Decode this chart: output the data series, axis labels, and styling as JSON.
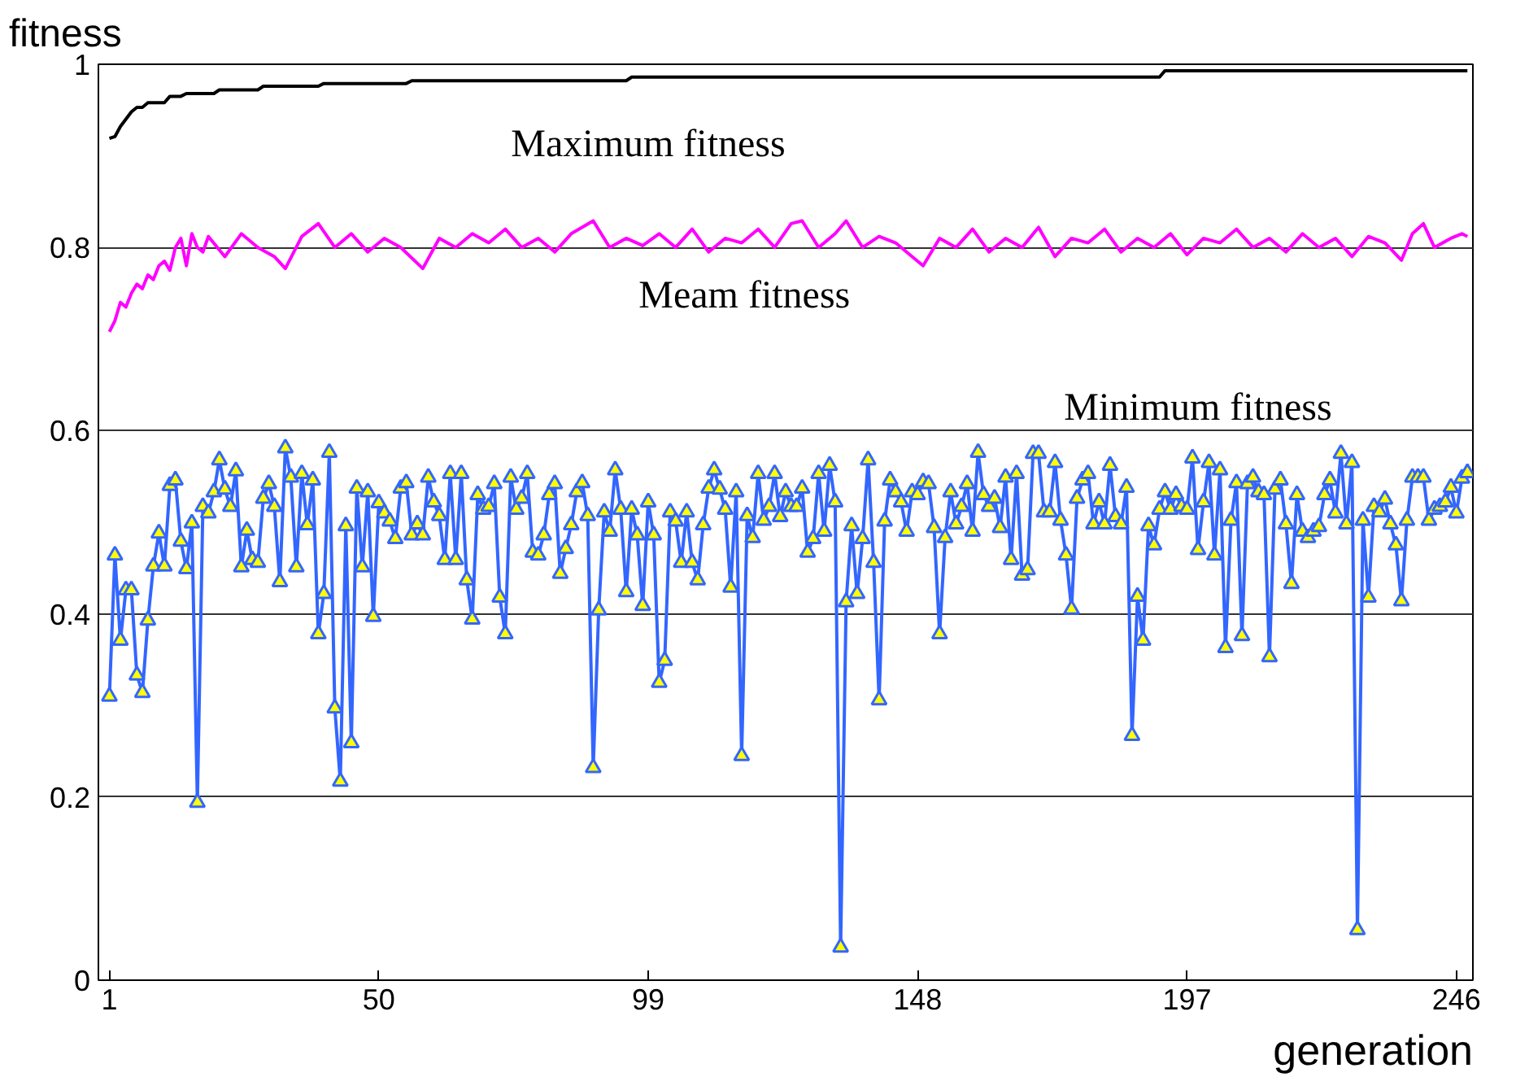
{
  "chart_data": {
    "type": "line",
    "xlabel": "generation",
    "ylabel": "fitness",
    "xlim": [
      -1,
      249
    ],
    "ylim": [
      0,
      1
    ],
    "xticks": [
      1,
      50,
      99,
      148,
      197,
      246
    ],
    "yticks": [
      0,
      0.2,
      0.4,
      0.6,
      0.8,
      1
    ],
    "grid": "y",
    "series": [
      {
        "name": "Maximum fitness",
        "color": "#000000",
        "marker": "none",
        "x": [
          1,
          2,
          3,
          4,
          5,
          6,
          7,
          8,
          11,
          12,
          14,
          15,
          20,
          21,
          28,
          29,
          39,
          40,
          55,
          56,
          95,
          96,
          192,
          193,
          248
        ],
        "values": [
          0.919,
          0.921,
          0.932,
          0.94,
          0.948,
          0.953,
          0.953,
          0.958,
          0.958,
          0.965,
          0.965,
          0.968,
          0.968,
          0.972,
          0.972,
          0.976,
          0.976,
          0.979,
          0.979,
          0.982,
          0.982,
          0.986,
          0.986,
          0.993,
          0.993
        ]
      },
      {
        "name": "Meam fitness",
        "color": "#ff00ff",
        "marker": "none",
        "x": [
          1,
          2,
          3,
          4,
          5,
          6,
          7,
          8,
          9,
          10,
          11,
          12,
          13,
          14,
          15,
          16,
          17,
          18,
          19,
          22,
          25,
          28,
          31,
          33,
          36,
          39,
          42,
          45,
          48,
          51,
          54,
          58,
          61,
          64,
          67,
          70,
          73,
          76,
          79,
          82,
          85,
          89,
          92,
          95,
          98,
          101,
          104,
          107,
          110,
          113,
          116,
          119,
          122,
          125,
          127,
          130,
          133,
          135,
          138,
          141,
          144,
          149,
          152,
          155,
          158,
          161,
          164,
          167,
          170,
          173,
          176,
          179,
          182,
          185,
          188,
          191,
          194,
          197,
          200,
          203,
          206,
          209,
          212,
          215,
          218,
          221,
          224,
          227,
          230,
          233,
          236,
          238,
          240,
          242,
          245,
          247,
          248
        ],
        "values": [
          0.708,
          0.72,
          0.74,
          0.735,
          0.75,
          0.76,
          0.755,
          0.77,
          0.765,
          0.78,
          0.785,
          0.775,
          0.8,
          0.81,
          0.78,
          0.815,
          0.8,
          0.795,
          0.812,
          0.79,
          0.815,
          0.8,
          0.79,
          0.777,
          0.812,
          0.826,
          0.8,
          0.815,
          0.795,
          0.81,
          0.8,
          0.777,
          0.81,
          0.8,
          0.815,
          0.805,
          0.82,
          0.8,
          0.81,
          0.795,
          0.815,
          0.829,
          0.8,
          0.81,
          0.802,
          0.815,
          0.8,
          0.82,
          0.795,
          0.81,
          0.805,
          0.82,
          0.8,
          0.826,
          0.829,
          0.8,
          0.815,
          0.829,
          0.8,
          0.812,
          0.805,
          0.78,
          0.81,
          0.8,
          0.82,
          0.795,
          0.81,
          0.8,
          0.822,
          0.79,
          0.81,
          0.805,
          0.82,
          0.795,
          0.81,
          0.8,
          0.815,
          0.792,
          0.81,
          0.805,
          0.82,
          0.8,
          0.81,
          0.795,
          0.815,
          0.8,
          0.81,
          0.79,
          0.812,
          0.805,
          0.786,
          0.815,
          0.826,
          0.8,
          0.81,
          0.815,
          0.812
        ]
      },
      {
        "name": "Minimum fitness",
        "color": "#3366ff",
        "marker": "triangle",
        "x": [
          1,
          2,
          3,
          4,
          5,
          6,
          7,
          8,
          9,
          10,
          11,
          12,
          13,
          14,
          15,
          16,
          17,
          18,
          19,
          20,
          21,
          22,
          23,
          24,
          25,
          26,
          27,
          28,
          29,
          30,
          31,
          32,
          33,
          34,
          35,
          36,
          37,
          38,
          39,
          40,
          41,
          42,
          43,
          44,
          45,
          46,
          47,
          48,
          49,
          50,
          51,
          52,
          53,
          54,
          55,
          56,
          57,
          58,
          59,
          60,
          61,
          62,
          63,
          64,
          65,
          66,
          67,
          68,
          69,
          70,
          71,
          72,
          73,
          74,
          75,
          76,
          77,
          78,
          79,
          80,
          81,
          82,
          83,
          84,
          85,
          86,
          87,
          88,
          89,
          90,
          91,
          92,
          93,
          94,
          95,
          96,
          97,
          98,
          99,
          100,
          101,
          102,
          103,
          104,
          105,
          106,
          107,
          108,
          109,
          110,
          111,
          112,
          113,
          114,
          115,
          116,
          117,
          118,
          119,
          120,
          121,
          122,
          123,
          124,
          125,
          126,
          127,
          128,
          129,
          130,
          131,
          132,
          133,
          134,
          135,
          136,
          137,
          138,
          139,
          140,
          141,
          142,
          143,
          144,
          145,
          146,
          147,
          148,
          149,
          150,
          151,
          152,
          153,
          154,
          155,
          156,
          157,
          158,
          159,
          160,
          161,
          162,
          163,
          164,
          165,
          166,
          167,
          168,
          169,
          170,
          171,
          172,
          173,
          174,
          175,
          176,
          177,
          178,
          179,
          180,
          181,
          182,
          183,
          184,
          185,
          186,
          187,
          188,
          189,
          190,
          191,
          192,
          193,
          194,
          195,
          196,
          197,
          198,
          199,
          200,
          201,
          202,
          203,
          204,
          205,
          206,
          207,
          208,
          209,
          210,
          211,
          212,
          213,
          214,
          215,
          216,
          217,
          218,
          219,
          220,
          221,
          222,
          223,
          224,
          225,
          226,
          227,
          228,
          229,
          230,
          231,
          232,
          233,
          234,
          235,
          236,
          237,
          238,
          239,
          240,
          241,
          242,
          243,
          244,
          245,
          246,
          247,
          248
        ],
        "values": [
          0.31,
          0.464,
          0.371,
          0.426,
          0.426,
          0.333,
          0.314,
          0.393,
          0.452,
          0.488,
          0.452,
          0.54,
          0.546,
          0.479,
          0.449,
          0.499,
          0.194,
          0.517,
          0.51,
          0.533,
          0.568,
          0.536,
          0.517,
          0.556,
          0.451,
          0.491,
          0.459,
          0.456,
          0.526,
          0.542,
          0.517,
          0.435,
          0.581,
          0.549,
          0.451,
          0.553,
          0.497,
          0.546,
          0.378,
          0.422,
          0.576,
          0.297,
          0.217,
          0.496,
          0.259,
          0.537,
          0.451,
          0.533,
          0.397,
          0.521,
          0.51,
          0.501,
          0.482,
          0.537,
          0.543,
          0.486,
          0.498,
          0.486,
          0.549,
          0.522,
          0.507,
          0.459,
          0.553,
          0.459,
          0.553,
          0.437,
          0.394,
          0.53,
          0.514,
          0.517,
          0.542,
          0.418,
          0.378,
          0.549,
          0.514,
          0.526,
          0.553,
          0.467,
          0.464,
          0.486,
          0.53,
          0.542,
          0.444,
          0.471,
          0.497,
          0.533,
          0.543,
          0.507,
          0.232,
          0.404,
          0.511,
          0.49,
          0.557,
          0.514,
          0.424,
          0.514,
          0.486,
          0.409,
          0.522,
          0.486,
          0.325,
          0.349,
          0.511,
          0.501,
          0.456,
          0.511,
          0.456,
          0.437,
          0.497,
          0.537,
          0.557,
          0.536,
          0.514,
          0.429,
          0.533,
          0.245,
          0.507,
          0.483,
          0.553,
          0.502,
          0.517,
          0.553,
          0.506,
          0.533,
          0.517,
          0.517,
          0.537,
          0.467,
          0.482,
          0.553,
          0.49,
          0.562,
          0.522,
          0.036,
          0.413,
          0.496,
          0.422,
          0.482,
          0.568,
          0.456,
          0.306,
          0.501,
          0.546,
          0.533,
          0.522,
          0.49,
          0.533,
          0.53,
          0.544,
          0.542,
          0.494,
          0.378,
          0.483,
          0.533,
          0.498,
          0.517,
          0.542,
          0.49,
          0.576,
          0.53,
          0.517,
          0.526,
          0.494,
          0.549,
          0.459,
          0.553,
          0.442,
          0.448,
          0.575,
          0.575,
          0.511,
          0.511,
          0.565,
          0.502,
          0.464,
          0.405,
          0.526,
          0.546,
          0.553,
          0.498,
          0.522,
          0.498,
          0.562,
          0.506,
          0.498,
          0.538,
          0.267,
          0.419,
          0.371,
          0.496,
          0.475,
          0.514,
          0.533,
          0.514,
          0.53,
          0.517,
          0.514,
          0.57,
          0.47,
          0.522,
          0.565,
          0.464,
          0.557,
          0.363,
          0.502,
          0.543,
          0.376,
          0.542,
          0.549,
          0.533,
          0.53,
          0.353,
          0.536,
          0.546,
          0.498,
          0.433,
          0.53,
          0.49,
          0.483,
          0.49,
          0.495,
          0.53,
          0.546,
          0.51,
          0.575,
          0.498,
          0.565,
          0.055,
          0.502,
          0.418,
          0.517,
          0.511,
          0.525,
          0.498,
          0.475,
          0.414,
          0.502,
          0.549,
          0.549,
          0.549,
          0.502,
          0.514,
          0.517,
          0.522,
          0.538,
          0.51,
          0.548,
          0.554
        ]
      }
    ]
  }
}
